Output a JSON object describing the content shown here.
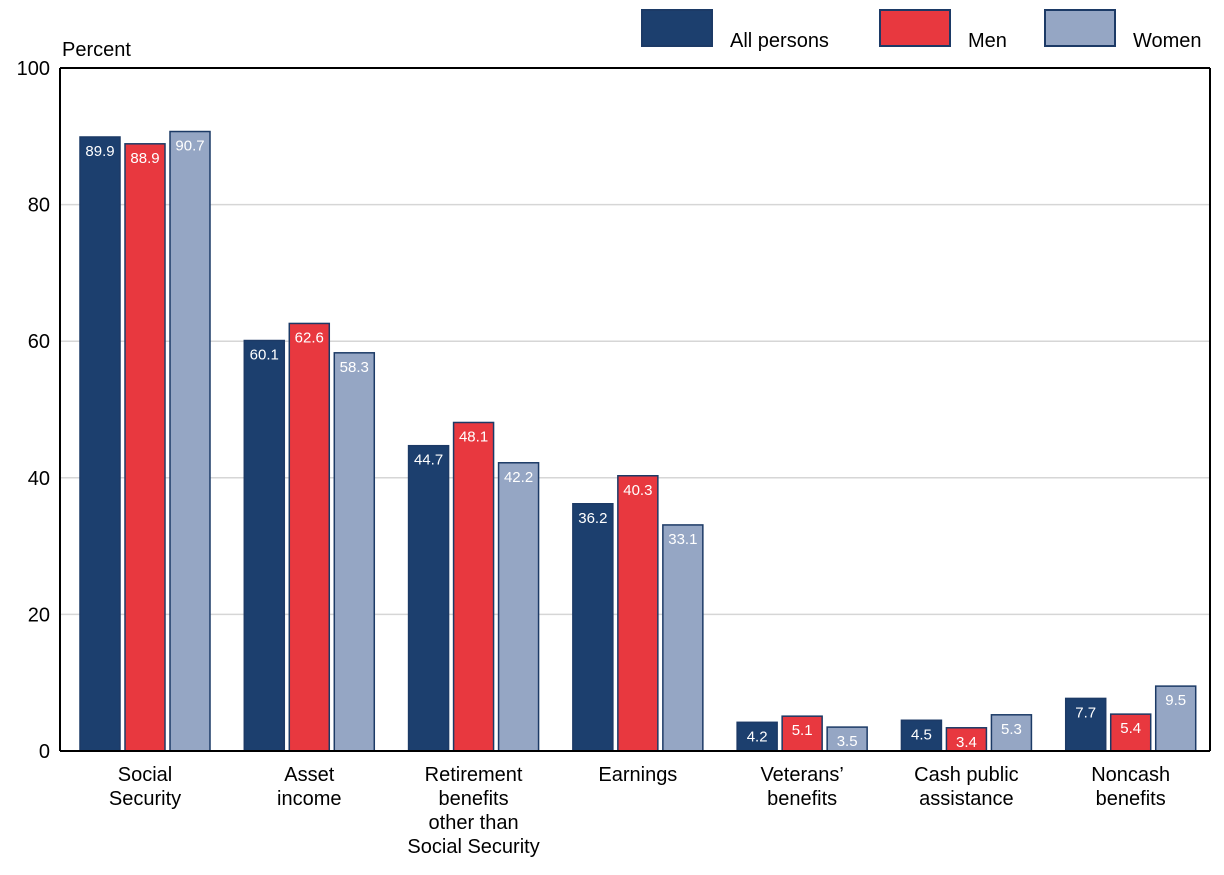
{
  "chart_data": {
    "type": "bar",
    "ylabel": "Percent",
    "ylim": [
      0,
      100
    ],
    "yticks": [
      0,
      20,
      40,
      60,
      80,
      100
    ],
    "grid": true,
    "legend_position": "top-right",
    "categories": [
      [
        "Social",
        "Security"
      ],
      [
        "Asset",
        "income"
      ],
      [
        "Retirement",
        "benefits",
        "other than",
        "Social Security"
      ],
      [
        "Earnings"
      ],
      [
        "Veterans’",
        "benefits"
      ],
      [
        "Cash public",
        "assistance"
      ],
      [
        "Noncash",
        "benefits"
      ]
    ],
    "series": [
      {
        "name": "All persons",
        "color": "#1c3f6e",
        "values": [
          89.9,
          60.1,
          44.7,
          36.2,
          4.2,
          4.5,
          7.7
        ]
      },
      {
        "name": "Men",
        "color": "#e8383f",
        "values": [
          88.9,
          62.6,
          48.1,
          40.3,
          5.1,
          3.4,
          5.4
        ]
      },
      {
        "name": "Women",
        "color": "#95a6c4",
        "values": [
          90.7,
          58.3,
          42.2,
          33.1,
          3.5,
          5.3,
          9.5
        ]
      }
    ]
  }
}
